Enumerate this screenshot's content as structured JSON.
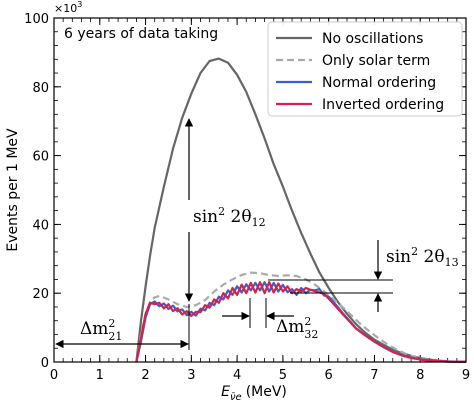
{
  "chart_data": {
    "type": "line",
    "title": "",
    "xlabel_main": "E",
    "xlabel_sub": "ν̄e",
    "xlabel_unit": "(MeV)",
    "ylabel": "Events per 1 MeV",
    "y_multiplier_base": "×10",
    "y_multiplier_exp": "3",
    "xlim": [
      0,
      9
    ],
    "ylim": [
      0,
      100
    ],
    "x_ticks": [
      0,
      1,
      2,
      3,
      4,
      5,
      6,
      7,
      8,
      9
    ],
    "y_ticks": [
      0,
      20,
      40,
      60,
      80,
      100
    ],
    "grid": false,
    "legend_position": "top-right",
    "inset_text": "6 years of data taking",
    "series": [
      {
        "name": "No oscillations",
        "color": "#666666",
        "style": "solid",
        "x": [
          1.8,
          1.9,
          2.0,
          2.1,
          2.2,
          2.4,
          2.6,
          2.8,
          3.0,
          3.2,
          3.4,
          3.6,
          3.8,
          4.0,
          4.2,
          4.4,
          4.6,
          4.8,
          5.0,
          5.2,
          5.4,
          5.6,
          5.8,
          6.0,
          6.2,
          6.4,
          6.6,
          6.8,
          7.0,
          7.2,
          7.4,
          7.6,
          7.8,
          8.0,
          8.2,
          8.4,
          8.6,
          8.8,
          9.0
        ],
        "y": [
          0,
          12,
          22,
          31,
          39,
          51,
          62,
          71,
          78,
          84,
          87.5,
          88.2,
          87,
          83.5,
          78.5,
          72,
          65,
          57.5,
          51,
          44,
          37.5,
          31.5,
          26,
          21.5,
          17.5,
          14,
          11,
          8.5,
          6.5,
          5,
          3.6,
          2.6,
          1.8,
          1.2,
          0.7,
          0.4,
          0.2,
          0.1,
          0.05
        ]
      },
      {
        "name": "Only solar term",
        "color": "#aaaaaa",
        "style": "dashed",
        "x": [
          1.8,
          1.9,
          2.0,
          2.1,
          2.2,
          2.3,
          2.5,
          2.7,
          2.9,
          3.1,
          3.3,
          3.5,
          3.7,
          3.9,
          4.1,
          4.3,
          4.5,
          4.7,
          4.9,
          5.1,
          5.3,
          5.5,
          5.7,
          5.9,
          6.1,
          6.3,
          6.5,
          6.7,
          6.9,
          7.1,
          7.3,
          7.5,
          7.7,
          7.9,
          8.1,
          8.3,
          8.5,
          8.7,
          9.0
        ],
        "y": [
          0,
          8,
          14,
          17.5,
          18.8,
          19.2,
          18.2,
          16.8,
          16,
          16.5,
          18,
          20.5,
          22.5,
          24,
          25.3,
          26,
          25.8,
          25.3,
          25,
          25.2,
          25,
          24,
          22.5,
          20.5,
          18.3,
          16,
          13.5,
          11,
          8.8,
          6.8,
          5,
          3.5,
          2.3,
          1.4,
          0.8,
          0.4,
          0.2,
          0.1,
          0.05
        ]
      },
      {
        "name": "Normal ordering",
        "color": "#3a5fcd",
        "style": "solid",
        "x": [
          1.8,
          1.9,
          2.0,
          2.1,
          2.2,
          2.3,
          2.4,
          2.5,
          2.6,
          2.7,
          2.8,
          2.9,
          3.0,
          3.1,
          3.2,
          3.3,
          3.4,
          3.5,
          3.6,
          3.7,
          3.8,
          3.9,
          4.0,
          4.1,
          4.2,
          4.3,
          4.4,
          4.5,
          4.6,
          4.7,
          4.8,
          4.9,
          5.0,
          5.1,
          5.2,
          5.3,
          5.4,
          5.5,
          5.6,
          5.7,
          5.8,
          5.9,
          6.0,
          6.1,
          6.2,
          6.3,
          6.4,
          6.5,
          6.6,
          6.8,
          7.0,
          7.2,
          7.4,
          7.6,
          7.8,
          8.0,
          8.2,
          8.4,
          8.6,
          8.8,
          9.0
        ],
        "y": [
          0,
          6,
          13,
          16.8,
          17.6,
          16.2,
          17,
          15.4,
          16.4,
          14.7,
          15.3,
          13.6,
          14.6,
          13.5,
          15.5,
          15,
          17.2,
          16.5,
          19,
          18.2,
          20.8,
          19.5,
          22,
          20.2,
          22.6,
          20.8,
          23,
          20.8,
          23.2,
          20.5,
          23,
          20.5,
          22.4,
          20.3,
          21.2,
          19.5,
          21.5,
          20,
          21,
          20.8,
          21.2,
          19.3,
          19,
          17.5,
          16,
          14.3,
          12.8,
          11.3,
          9.8,
          7.8,
          6,
          4.4,
          3,
          2,
          1.3,
          0.8,
          0.5,
          0.3,
          0.15,
          0.08,
          0.04
        ]
      },
      {
        "name": "Inverted ordering",
        "color": "#d6214a",
        "style": "solid",
        "x": [
          1.8,
          1.9,
          2.0,
          2.1,
          2.2,
          2.3,
          2.4,
          2.5,
          2.6,
          2.7,
          2.8,
          2.9,
          3.0,
          3.1,
          3.2,
          3.3,
          3.4,
          3.5,
          3.6,
          3.7,
          3.8,
          3.9,
          4.0,
          4.1,
          4.2,
          4.3,
          4.4,
          4.5,
          4.6,
          4.7,
          4.8,
          4.9,
          5.0,
          5.1,
          5.2,
          5.3,
          5.4,
          5.5,
          5.6,
          5.7,
          5.8,
          5.9,
          6.0,
          6.1,
          6.2,
          6.3,
          6.4,
          6.5,
          6.6,
          6.8,
          7.0,
          7.2,
          7.4,
          7.6,
          7.8,
          8.0,
          8.2,
          8.4,
          8.6,
          8.8,
          9.0
        ],
        "y": [
          0,
          7,
          14,
          17.2,
          16.8,
          17.2,
          15.6,
          16.8,
          14.8,
          15.6,
          13.8,
          14.8,
          13.4,
          14.6,
          14.5,
          16.5,
          15.8,
          18.2,
          17.2,
          20,
          18.5,
          21.5,
          19.5,
          22.5,
          20,
          23,
          20.2,
          23.2,
          20,
          23.2,
          20.2,
          22.8,
          20.5,
          22,
          20,
          21.2,
          20.5,
          21.5,
          21,
          20.6,
          20.2,
          19.8,
          18.4,
          17,
          15.5,
          14,
          12.6,
          11.1,
          9.7,
          7.7,
          5.9,
          4.3,
          2.9,
          1.9,
          1.2,
          0.7,
          0.4,
          0.25,
          0.12,
          0.06,
          0.03
        ]
      }
    ],
    "annotations": [
      {
        "id": "theta12",
        "base": "sin",
        "sup": "2",
        "tail": " 2θ",
        "sub": "12"
      },
      {
        "id": "theta13",
        "base": "sin",
        "sup": "2",
        "tail": " 2θ",
        "sub": "13"
      },
      {
        "id": "dm21",
        "base": "Δm",
        "sup": "2",
        "sub": "21"
      },
      {
        "id": "dm32",
        "base": "Δm",
        "sup": "2",
        "sub": "32"
      }
    ]
  }
}
